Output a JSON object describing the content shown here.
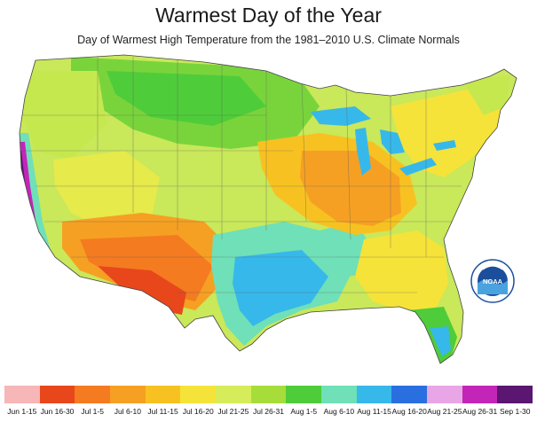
{
  "title": "Warmest Day of the Year",
  "subtitle": "Day of Warmest High Temperature from the 1981–2010 U.S. Climate Normals",
  "legend": [
    {
      "label": "Jun 1-15",
      "color": "#f7b6b8"
    },
    {
      "label": "Jun 16-30",
      "color": "#e8471c"
    },
    {
      "label": "Jul 1-5",
      "color": "#f47b20"
    },
    {
      "label": "Jul 6-10",
      "color": "#f6a023"
    },
    {
      "label": "Jul 11-15",
      "color": "#f7c221"
    },
    {
      "label": "Jul 16-20",
      "color": "#f5e33a"
    },
    {
      "label": "Jul 21-25",
      "color": "#d6ec5a"
    },
    {
      "label": "Jul 26-31",
      "color": "#a6dd3a"
    },
    {
      "label": "Aug 1-5",
      "color": "#4fcc3a"
    },
    {
      "label": "Aug 6-10",
      "color": "#6fe0b8"
    },
    {
      "label": "Aug 11-15",
      "color": "#37b8ea"
    },
    {
      "label": "Aug 16-20",
      "color": "#2a6fe0"
    },
    {
      "label": "Aug 21-25",
      "color": "#e9a6e6"
    },
    {
      "label": "Aug 26-31",
      "color": "#c425b9"
    },
    {
      "label": "Sep 1-30",
      "color": "#5a1670"
    }
  ],
  "logo": {
    "text": "NOAA",
    "icon": "noaa-logo-icon"
  }
}
